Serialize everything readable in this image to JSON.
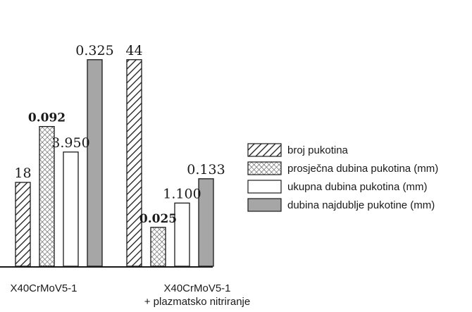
{
  "chart_data": {
    "type": "bar",
    "categories": [
      "X40CrMoV5-1",
      "X40CrMoV5-1\n+ plazmatsko nitriranje"
    ],
    "category_lines": [
      [
        "X40CrMoV5-1"
      ],
      [
        "X40CrMoV5-1",
        "+ plazmatsko nitriranje"
      ]
    ],
    "series": [
      {
        "name": "broj pukotina",
        "values": [
          18,
          44
        ],
        "labels": [
          "18",
          "44"
        ],
        "pattern": "diagonal-hatch"
      },
      {
        "name": "prosječna dubina pukotina (mm)",
        "values": [
          0.092,
          0.025
        ],
        "labels": [
          "0.092",
          "0.025"
        ],
        "pattern": "crosshatch"
      },
      {
        "name": "ukupna dubina pukotina (mm)",
        "values": [
          3.95,
          1.1
        ],
        "labels": [
          "3.950",
          "1.100"
        ],
        "pattern": "white"
      },
      {
        "name": "dubina najdublje pukotine (mm)",
        "values": [
          0.325,
          0.133
        ],
        "labels": [
          "0.325",
          "0.133"
        ],
        "pattern": "gray"
      }
    ],
    "bar_heights_relative": [
      [
        0.345,
        0.85
      ],
      [
        0.575,
        0.16
      ],
      [
        0.47,
        0.26
      ],
      [
        0.85,
        0.36
      ]
    ],
    "legend_position": "right",
    "grid": false,
    "colors": {
      "gray": "#a6a6a6",
      "outline": "#1a1a1a",
      "background": "#ffffff"
    }
  }
}
